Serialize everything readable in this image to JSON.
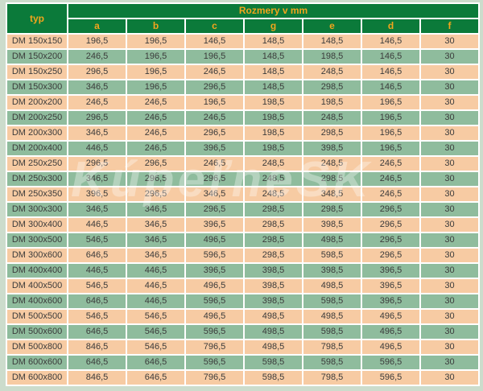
{
  "watermark": "KúpeľneSK",
  "colors": {
    "page_bg": "#ccdccc",
    "header_green": "#0b7a3a",
    "header_text": "#f2a51c",
    "row_pink": "#f7cba3",
    "row_green": "#8fbc9d",
    "cell_text": "#3b3b3b",
    "gap_white": "#ffffff"
  },
  "table": {
    "typ_header": "typ",
    "group_header": "Rozmery v mm",
    "columns": [
      "a",
      "b",
      "c",
      "g",
      "e",
      "d",
      "f"
    ],
    "rows": [
      {
        "typ": "DM 150x150",
        "values": [
          "196,5",
          "196,5",
          "146,5",
          "148,5",
          "148,5",
          "146,5",
          "30"
        ]
      },
      {
        "typ": "DM 150x200",
        "values": [
          "246,5",
          "196,5",
          "196,5",
          "148,5",
          "198,5",
          "146,5",
          "30"
        ]
      },
      {
        "typ": "DM 150x250",
        "values": [
          "296,5",
          "196,5",
          "246,5",
          "148,5",
          "248,5",
          "146,5",
          "30"
        ]
      },
      {
        "typ": "DM 150x300",
        "values": [
          "346,5",
          "196,5",
          "296,5",
          "148,5",
          "298,5",
          "146,5",
          "30"
        ]
      },
      {
        "typ": "DM 200x200",
        "values": [
          "246,5",
          "246,5",
          "196,5",
          "198,5",
          "198,5",
          "196,5",
          "30"
        ]
      },
      {
        "typ": "DM 200x250",
        "values": [
          "296,5",
          "246,5",
          "246,5",
          "198,5",
          "248,5",
          "196,5",
          "30"
        ]
      },
      {
        "typ": "DM 200x300",
        "values": [
          "346,5",
          "246,5",
          "296,5",
          "198,5",
          "298,5",
          "196,5",
          "30"
        ]
      },
      {
        "typ": "DM 200x400",
        "values": [
          "446,5",
          "246,5",
          "396,5",
          "198,5",
          "398,5",
          "196,5",
          "30"
        ]
      },
      {
        "typ": "DM 250x250",
        "values": [
          "296,5",
          "296,5",
          "246,5",
          "248,5",
          "248,5",
          "246,5",
          "30"
        ]
      },
      {
        "typ": "DM 250x300",
        "values": [
          "346,5",
          "296,5",
          "296,5",
          "248,5",
          "298,5",
          "246,5",
          "30"
        ]
      },
      {
        "typ": "DM 250x350",
        "values": [
          "396,5",
          "296,5",
          "346,5",
          "248,5",
          "348,5",
          "246,5",
          "30"
        ]
      },
      {
        "typ": "DM 300x300",
        "values": [
          "346,5",
          "346,5",
          "296,5",
          "298,5",
          "298,5",
          "296,5",
          "30"
        ]
      },
      {
        "typ": "DM 300x400",
        "values": [
          "446,5",
          "346,5",
          "396,5",
          "298,5",
          "398,5",
          "296,5",
          "30"
        ]
      },
      {
        "typ": "DM 300x500",
        "values": [
          "546,5",
          "346,5",
          "496,5",
          "298,5",
          "498,5",
          "296,5",
          "30"
        ]
      },
      {
        "typ": "DM 300x600",
        "values": [
          "646,5",
          "346,5",
          "596,5",
          "298,5",
          "598,5",
          "296,5",
          "30"
        ]
      },
      {
        "typ": "DM 400x400",
        "values": [
          "446,5",
          "446,5",
          "396,5",
          "398,5",
          "398,5",
          "396,5",
          "30"
        ]
      },
      {
        "typ": "DM 400x500",
        "values": [
          "546,5",
          "446,5",
          "496,5",
          "398,5",
          "498,5",
          "396,5",
          "30"
        ]
      },
      {
        "typ": "DM 400x600",
        "values": [
          "646,5",
          "446,5",
          "596,5",
          "398,5",
          "598,5",
          "396,5",
          "30"
        ]
      },
      {
        "typ": "DM 500x500",
        "values": [
          "546,5",
          "546,5",
          "496,5",
          "498,5",
          "498,5",
          "496,5",
          "30"
        ]
      },
      {
        "typ": "DM 500x600",
        "values": [
          "646,5",
          "546,5",
          "596,5",
          "498,5",
          "598,5",
          "496,5",
          "30"
        ]
      },
      {
        "typ": "DM 500x800",
        "values": [
          "846,5",
          "546,5",
          "796,5",
          "498,5",
          "798,5",
          "496,5",
          "30"
        ]
      },
      {
        "typ": "DM 600x600",
        "values": [
          "646,5",
          "646,5",
          "596,5",
          "598,5",
          "598,5",
          "596,5",
          "30"
        ]
      },
      {
        "typ": "DM 600x800",
        "values": [
          "846,5",
          "646,5",
          "796,5",
          "598,5",
          "798,5",
          "596,5",
          "30"
        ]
      }
    ]
  }
}
